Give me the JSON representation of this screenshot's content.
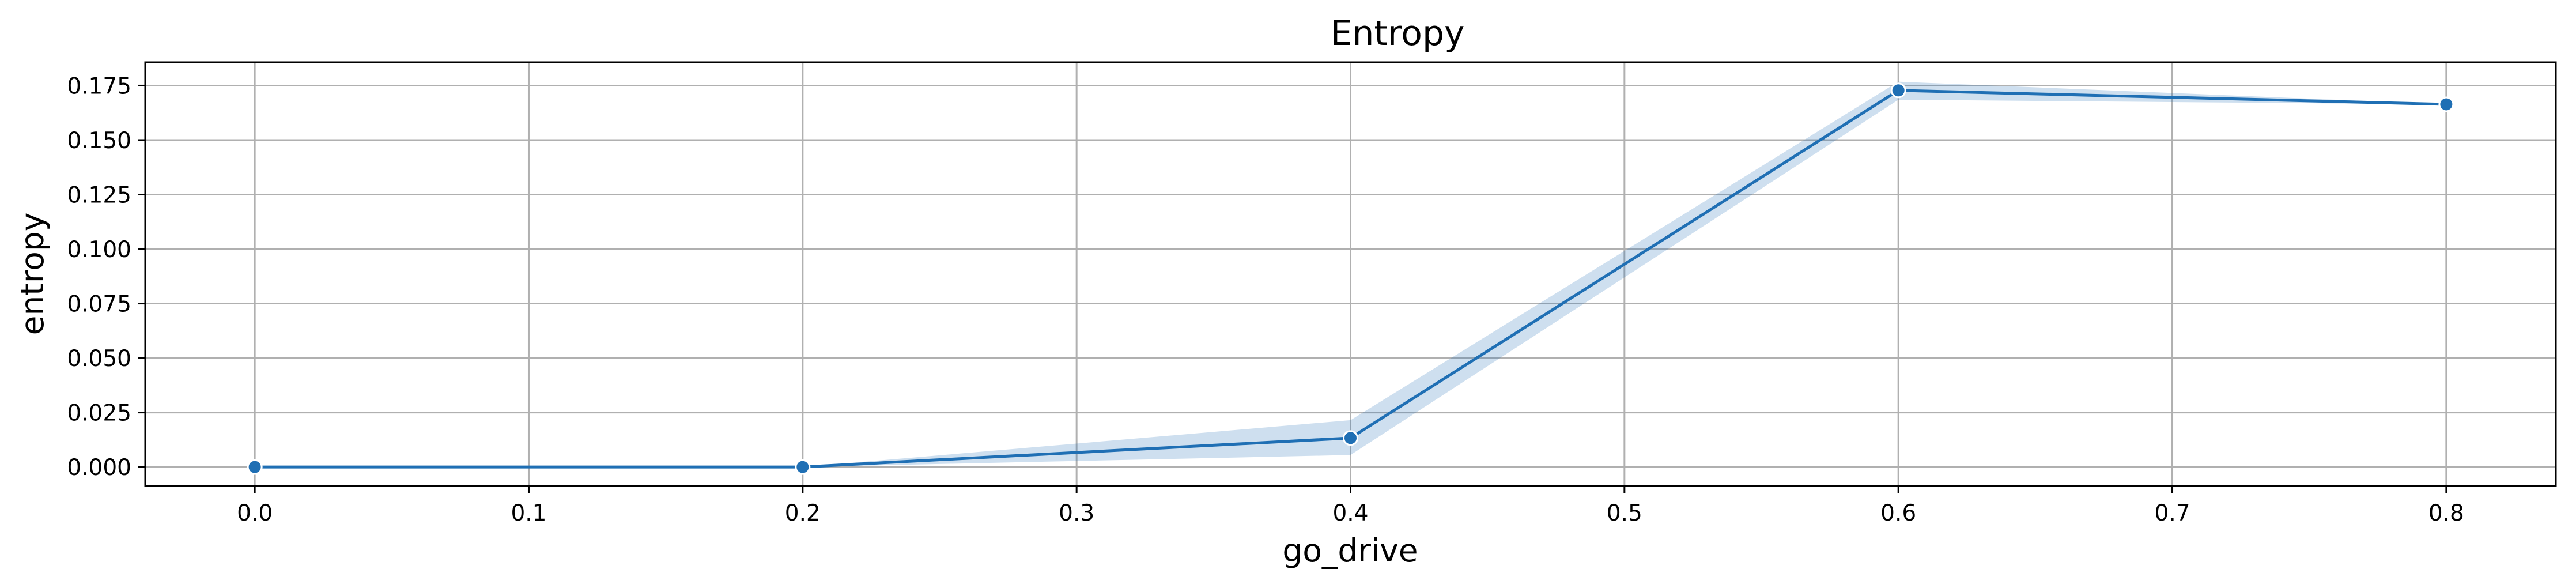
{
  "chart_data": {
    "type": "line",
    "title": "Entropy",
    "xlabel": "go_drive",
    "ylabel": "entropy",
    "xlim": [
      -0.04,
      0.84
    ],
    "ylim": [
      -0.0087,
      0.1857
    ],
    "xticks": [
      0.0,
      0.1,
      0.2,
      0.3,
      0.4,
      0.5,
      0.6,
      0.7,
      0.8
    ],
    "xtick_labels": [
      "0.0",
      "0.1",
      "0.2",
      "0.3",
      "0.4",
      "0.5",
      "0.6",
      "0.7",
      "0.8"
    ],
    "yticks": [
      0.0,
      0.025,
      0.05,
      0.075,
      0.1,
      0.125,
      0.15,
      0.175
    ],
    "ytick_labels": [
      "0.000",
      "0.025",
      "0.050",
      "0.075",
      "0.100",
      "0.125",
      "0.150",
      "0.175"
    ],
    "grid": true,
    "series": [
      {
        "x": [
          0.0,
          0.2,
          0.4,
          0.6,
          0.8
        ],
        "y": [
          0.0,
          0.0,
          0.0133,
          0.1728,
          0.1664
        ],
        "ci_lower": [
          0.0,
          0.0,
          0.0055,
          0.1685,
          0.1664
        ],
        "ci_upper": [
          0.0,
          0.0,
          0.0215,
          0.1768,
          0.1664
        ],
        "color": "#1f6fb4",
        "band_color": "#1f6fb4",
        "marker": "circle"
      }
    ]
  }
}
